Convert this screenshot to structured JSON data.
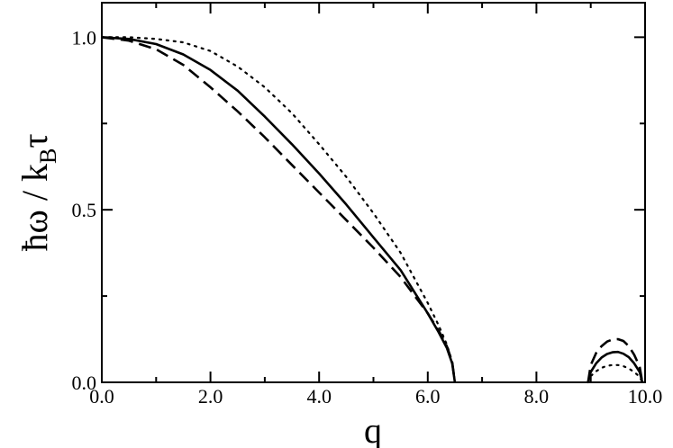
{
  "chart_data": {
    "type": "line",
    "title": "",
    "xlabel": "q",
    "ylabel_main": "ħω / k",
    "ylabel_sub": "B",
    "ylabel_end": "τ",
    "xlim": [
      0,
      10
    ],
    "ylim": [
      0,
      1.1
    ],
    "xticks_major": [
      0,
      2,
      4,
      6,
      8,
      10
    ],
    "xtick_labels": [
      "0.0",
      "2.0",
      "4.0",
      "6.0",
      "8.0",
      "10.0"
    ],
    "xticks_minor": [
      1,
      3,
      5,
      7,
      9
    ],
    "yticks_major": [
      0,
      0.5,
      1.0
    ],
    "ytick_labels": [
      "0.0",
      "0.5",
      "1.0"
    ],
    "yticks_minor": [
      0.25,
      0.75
    ],
    "grid": false,
    "legend": "none",
    "series": [
      {
        "style": "solid",
        "segments": [
          {
            "x": [
              0,
              0.5,
              1.0,
              1.5,
              2.0,
              2.5,
              3.0,
              3.5,
              4.0,
              4.5,
              5.0,
              5.5,
              6.0,
              6.2,
              6.35,
              6.45,
              6.5
            ],
            "y": [
              1.0,
              0.995,
              0.98,
              0.95,
              0.905,
              0.845,
              0.77,
              0.69,
              0.605,
              0.515,
              0.42,
              0.325,
              0.2,
              0.145,
              0.1,
              0.055,
              0.0
            ]
          },
          {
            "x": [
              8.95,
              9.0,
              9.1,
              9.2,
              9.3,
              9.4,
              9.5,
              9.6,
              9.7,
              9.8,
              9.9,
              9.95
            ],
            "y": [
              0.0,
              0.03,
              0.055,
              0.072,
              0.082,
              0.087,
              0.088,
              0.083,
              0.073,
              0.055,
              0.03,
              0.0
            ]
          }
        ]
      },
      {
        "style": "dashed",
        "segments": [
          {
            "x": [
              0,
              0.5,
              1.0,
              1.5,
              2.0,
              2.5,
              3.0,
              3.5,
              4.0,
              4.5,
              5.0,
              5.5,
              6.0,
              6.2,
              6.35,
              6.45,
              6.5
            ],
            "y": [
              1.0,
              0.99,
              0.965,
              0.92,
              0.855,
              0.785,
              0.71,
              0.63,
              0.55,
              0.47,
              0.39,
              0.305,
              0.2,
              0.15,
              0.105,
              0.06,
              0.0
            ]
          },
          {
            "x": [
              8.95,
              9.0,
              9.1,
              9.2,
              9.3,
              9.4,
              9.5,
              9.6,
              9.7,
              9.8,
              9.9,
              9.95
            ],
            "y": [
              0.0,
              0.05,
              0.085,
              0.105,
              0.118,
              0.124,
              0.125,
              0.12,
              0.105,
              0.08,
              0.045,
              0.0
            ]
          }
        ]
      },
      {
        "style": "dotted",
        "segments": [
          {
            "x": [
              0,
              0.5,
              1.0,
              1.5,
              2.0,
              2.5,
              3.0,
              3.5,
              4.0,
              4.5,
              5.0,
              5.5,
              6.0,
              6.2,
              6.35,
              6.45,
              6.5
            ],
            "y": [
              1.0,
              1.0,
              0.995,
              0.985,
              0.96,
              0.915,
              0.855,
              0.78,
              0.69,
              0.595,
              0.49,
              0.375,
              0.23,
              0.165,
              0.11,
              0.06,
              0.0
            ]
          },
          {
            "x": [
              8.95,
              9.0,
              9.1,
              9.2,
              9.3,
              9.4,
              9.5,
              9.6,
              9.7,
              9.8,
              9.9,
              9.95
            ],
            "y": [
              0.0,
              0.018,
              0.032,
              0.042,
              0.048,
              0.05,
              0.05,
              0.047,
              0.04,
              0.03,
              0.016,
              0.0
            ]
          }
        ]
      }
    ]
  }
}
